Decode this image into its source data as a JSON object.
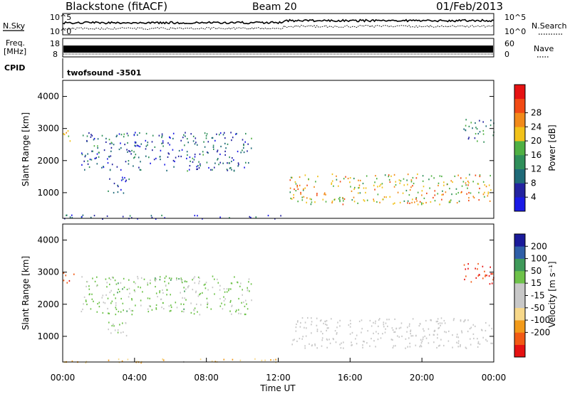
{
  "header": {
    "title": "Blackstone (fitACF)",
    "beam": "Beam 20",
    "date": "01/Feb/2013"
  },
  "summary_panels": {
    "nsky_label": "N.Sky",
    "nsearch_label": "N.Search",
    "noise_ticks": [
      "10^5",
      "10^0"
    ],
    "freq_label": "Freq.",
    "freq_unit": "[MHz]",
    "freq_ticks": [
      "18",
      "8"
    ],
    "nave_label": "Nave",
    "nave_ticks": [
      "60",
      "0"
    ],
    "cpid_label": "CPID",
    "cpid_value": "twofsound -3501"
  },
  "colors": {
    "power_scale": [
      "#1a1ae6",
      "#2323a0",
      "#1f6a78",
      "#2f8f5a",
      "#4fb043",
      "#f2c21a",
      "#f28a1a",
      "#f24a14",
      "#e61212"
    ],
    "velocity_scale": [
      "#e61212",
      "#f25a14",
      "#f29a1a",
      "#f7d88a",
      "#c8c8c8",
      "#c8c8c8",
      "#6ec24a",
      "#3f9a5a",
      "#2f5fa8",
      "#1a1a9a"
    ]
  },
  "chart_data": [
    {
      "type": "heatmap",
      "panel": "power",
      "ylabel": "Slant Range [km]",
      "xlabel": "",
      "yticks": [
        "1000",
        "2000",
        "3000",
        "4000"
      ],
      "ylim": [
        200,
        4500
      ],
      "xlim": [
        "00:00",
        "24:00"
      ],
      "colorbar": {
        "label": "Power [dB]",
        "ticks": [
          "4",
          "8",
          "12",
          "16",
          "20",
          "24",
          "28"
        ],
        "range": [
          0,
          32
        ]
      },
      "features": [
        {
          "t0": 12.6,
          "t1": 23.9,
          "r0": 650,
          "r1": 1600,
          "value": 20
        },
        {
          "t0": 1.0,
          "t1": 10.5,
          "r0": 1700,
          "r1": 2900,
          "value": 8
        },
        {
          "t0": 2.5,
          "t1": 3.8,
          "r0": 1000,
          "r1": 1500,
          "value": 6
        },
        {
          "t0": 0.0,
          "t1": 0.6,
          "r0": 2600,
          "r1": 3000,
          "value": 16
        },
        {
          "t0": 22.3,
          "t1": 24.0,
          "r0": 2600,
          "r1": 3300,
          "value": 10
        },
        {
          "t0": 0.0,
          "t1": 12.2,
          "r0": 200,
          "r1": 320,
          "value": 6
        }
      ]
    },
    {
      "type": "heatmap",
      "panel": "velocity",
      "ylabel": "Slant Range [km]",
      "xlabel": "Time UT",
      "xticks": [
        "00:00",
        "04:00",
        "08:00",
        "12:00",
        "16:00",
        "20:00",
        "00:00"
      ],
      "yticks": [
        "1000",
        "2000",
        "3000",
        "4000"
      ],
      "ylim": [
        200,
        4500
      ],
      "xlim": [
        "00:00",
        "24:00"
      ],
      "colorbar": {
        "label": "Velocity [m s⁻¹]",
        "ticks": [
          "200",
          "100",
          "50",
          "15",
          "-15",
          "-50",
          "-100",
          "-200"
        ],
        "range": [
          -250,
          250
        ]
      },
      "features": [
        {
          "t0": 12.6,
          "t1": 23.9,
          "r0": 650,
          "r1": 1600,
          "value": 0
        },
        {
          "t0": 1.0,
          "t1": 10.5,
          "r0": 1700,
          "r1": 2900,
          "value": 60
        },
        {
          "t0": 2.5,
          "t1": 3.8,
          "r0": 1000,
          "r1": 1500,
          "value": 60
        },
        {
          "t0": 0.0,
          "t1": 0.6,
          "r0": 2600,
          "r1": 3000,
          "value": -200
        },
        {
          "t0": 22.3,
          "t1": 24.0,
          "r0": 2600,
          "r1": 3300,
          "value": -200
        },
        {
          "t0": 0.0,
          "t1": 12.2,
          "r0": 200,
          "r1": 320,
          "value": -80
        }
      ]
    }
  ]
}
